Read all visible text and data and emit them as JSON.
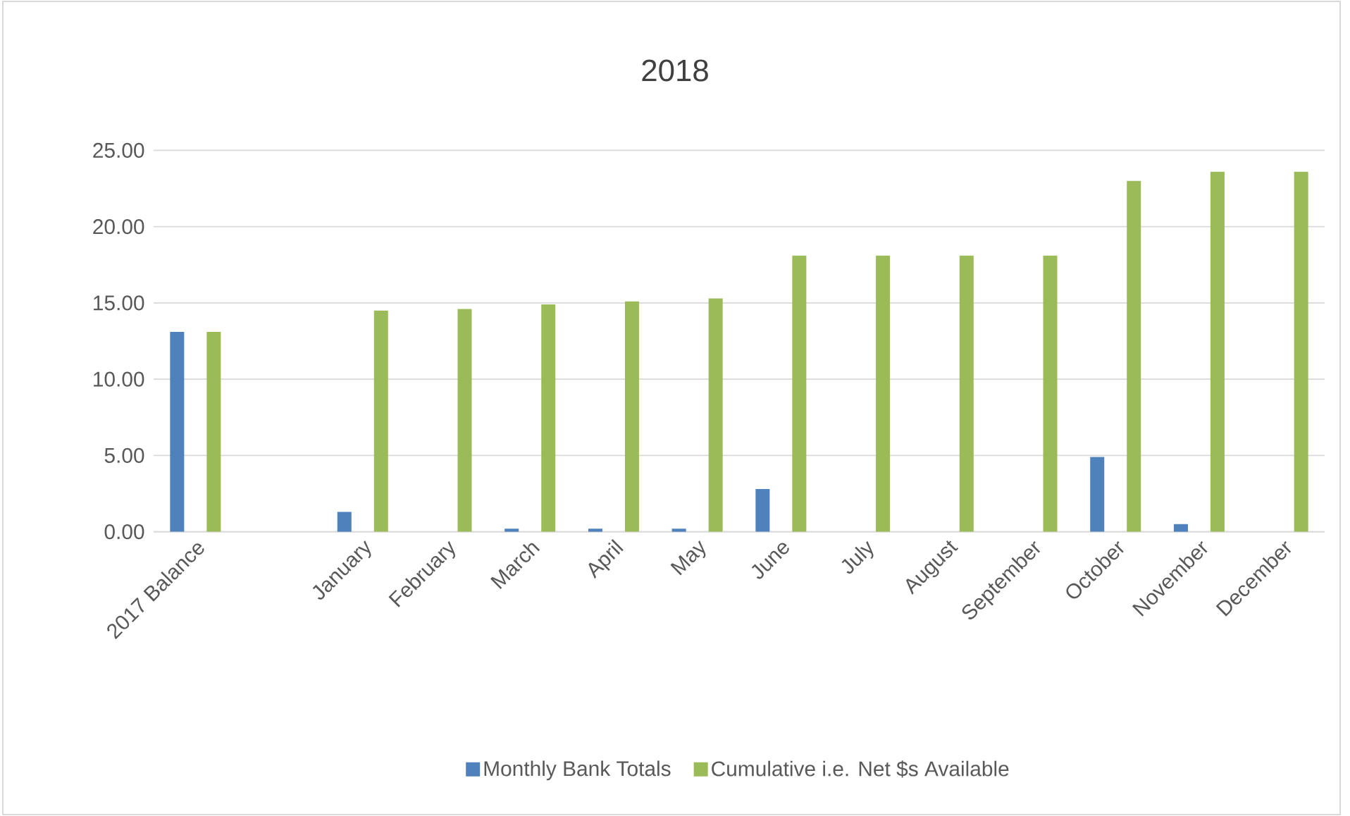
{
  "chart_data": {
    "type": "bar",
    "title": "2018",
    "categories": [
      "2017 Balance",
      null,
      "January",
      "February",
      "March",
      "April",
      "May",
      "June",
      "July",
      "August",
      "September",
      "October",
      "November",
      "December"
    ],
    "series": [
      {
        "name": "Monthly Bank Totals",
        "color": "#4f81bd",
        "values": [
          13.1,
          null,
          1.3,
          null,
          0.2,
          0.2,
          0.2,
          2.8,
          null,
          null,
          null,
          4.9,
          0.5,
          null
        ]
      },
      {
        "name": "Cumulative i.e. Net $s Available",
        "color": "#9bbb59",
        "values": [
          13.1,
          null,
          14.5,
          14.6,
          14.9,
          15.1,
          15.3,
          18.1,
          18.1,
          18.1,
          18.1,
          23.0,
          23.6,
          23.6
        ]
      }
    ],
    "ylim": [
      0,
      25
    ],
    "yticks": [
      {
        "value": 0,
        "label": "0.00"
      },
      {
        "value": 5,
        "label": "5.00"
      },
      {
        "value": 10,
        "label": "10.00"
      },
      {
        "value": 15,
        "label": "15.00"
      },
      {
        "value": 20,
        "label": "20.00"
      },
      {
        "value": 25,
        "label": "25.00"
      }
    ],
    "grid": "y",
    "legend": "bottom"
  }
}
